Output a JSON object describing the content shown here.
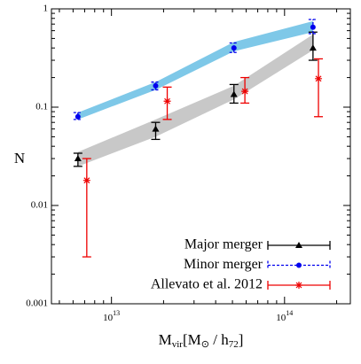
{
  "chart_data": {
    "type": "scatter",
    "log_x": true,
    "log_y": true,
    "xlim": [
      4500000000000.0,
      240000000000000.0
    ],
    "ylim": [
      0.001,
      1
    ],
    "xticks": [
      {
        "value": 10000000000000.0,
        "label": "10^13"
      },
      {
        "value": 100000000000000.0,
        "label": "10^14"
      }
    ],
    "yticks": [
      0.001,
      0.01,
      0.1,
      1
    ],
    "ylabel": "N",
    "xlabel": [
      {
        "text": "M"
      },
      {
        "text": "vir",
        "sub": true
      },
      {
        "text": "[M"
      },
      {
        "text": "⊙",
        "sub": true
      },
      {
        "text": " / h"
      },
      {
        "text": "72",
        "sub": true
      },
      {
        "text": "]"
      }
    ],
    "legend": "lower right",
    "series": [
      {
        "name": "Major merger",
        "color": "#000000",
        "marker": "triangle",
        "dash": false,
        "band_color": "#c8c8c8",
        "x": [
          6400000000000.0,
          18000000000000.0,
          51000000000000.0,
          146000000000000.0
        ],
        "values": [
          0.03,
          0.06,
          0.135,
          0.4
        ],
        "errors_low": [
          0.025,
          0.047,
          0.11,
          0.3
        ],
        "errors_high": [
          0.034,
          0.07,
          0.17,
          0.58
        ],
        "band_low": [
          0.025,
          0.05,
          0.12,
          0.38
        ],
        "band_high": [
          0.035,
          0.075,
          0.165,
          0.55
        ]
      },
      {
        "name": "Minor merger",
        "color": "#0000ee",
        "marker": "circle",
        "dash": true,
        "band_color": "#7ec8e8",
        "x": [
          6400000000000.0,
          18000000000000.0,
          51000000000000.0,
          146000000000000.0
        ],
        "values": [
          0.08,
          0.165,
          0.4,
          0.65
        ],
        "errors_low": [
          0.075,
          0.15,
          0.36,
          0.56
        ],
        "errors_high": [
          0.088,
          0.18,
          0.45,
          0.78
        ],
        "band_low": [
          0.075,
          0.15,
          0.37,
          0.58
        ],
        "band_high": [
          0.088,
          0.18,
          0.46,
          0.75
        ]
      },
      {
        "name": "Allevato et al. 2012",
        "color": "#ee0000",
        "marker": "star",
        "dash": false,
        "x": [
          7200000000000.0,
          21000000000000.0,
          59000000000000.0,
          157000000000000.0
        ],
        "values": [
          0.018,
          0.115,
          0.145,
          0.195
        ],
        "errors_low": [
          0.003,
          0.075,
          0.11,
          0.08
        ],
        "errors_high": [
          0.03,
          0.16,
          0.2,
          0.31
        ]
      }
    ]
  }
}
